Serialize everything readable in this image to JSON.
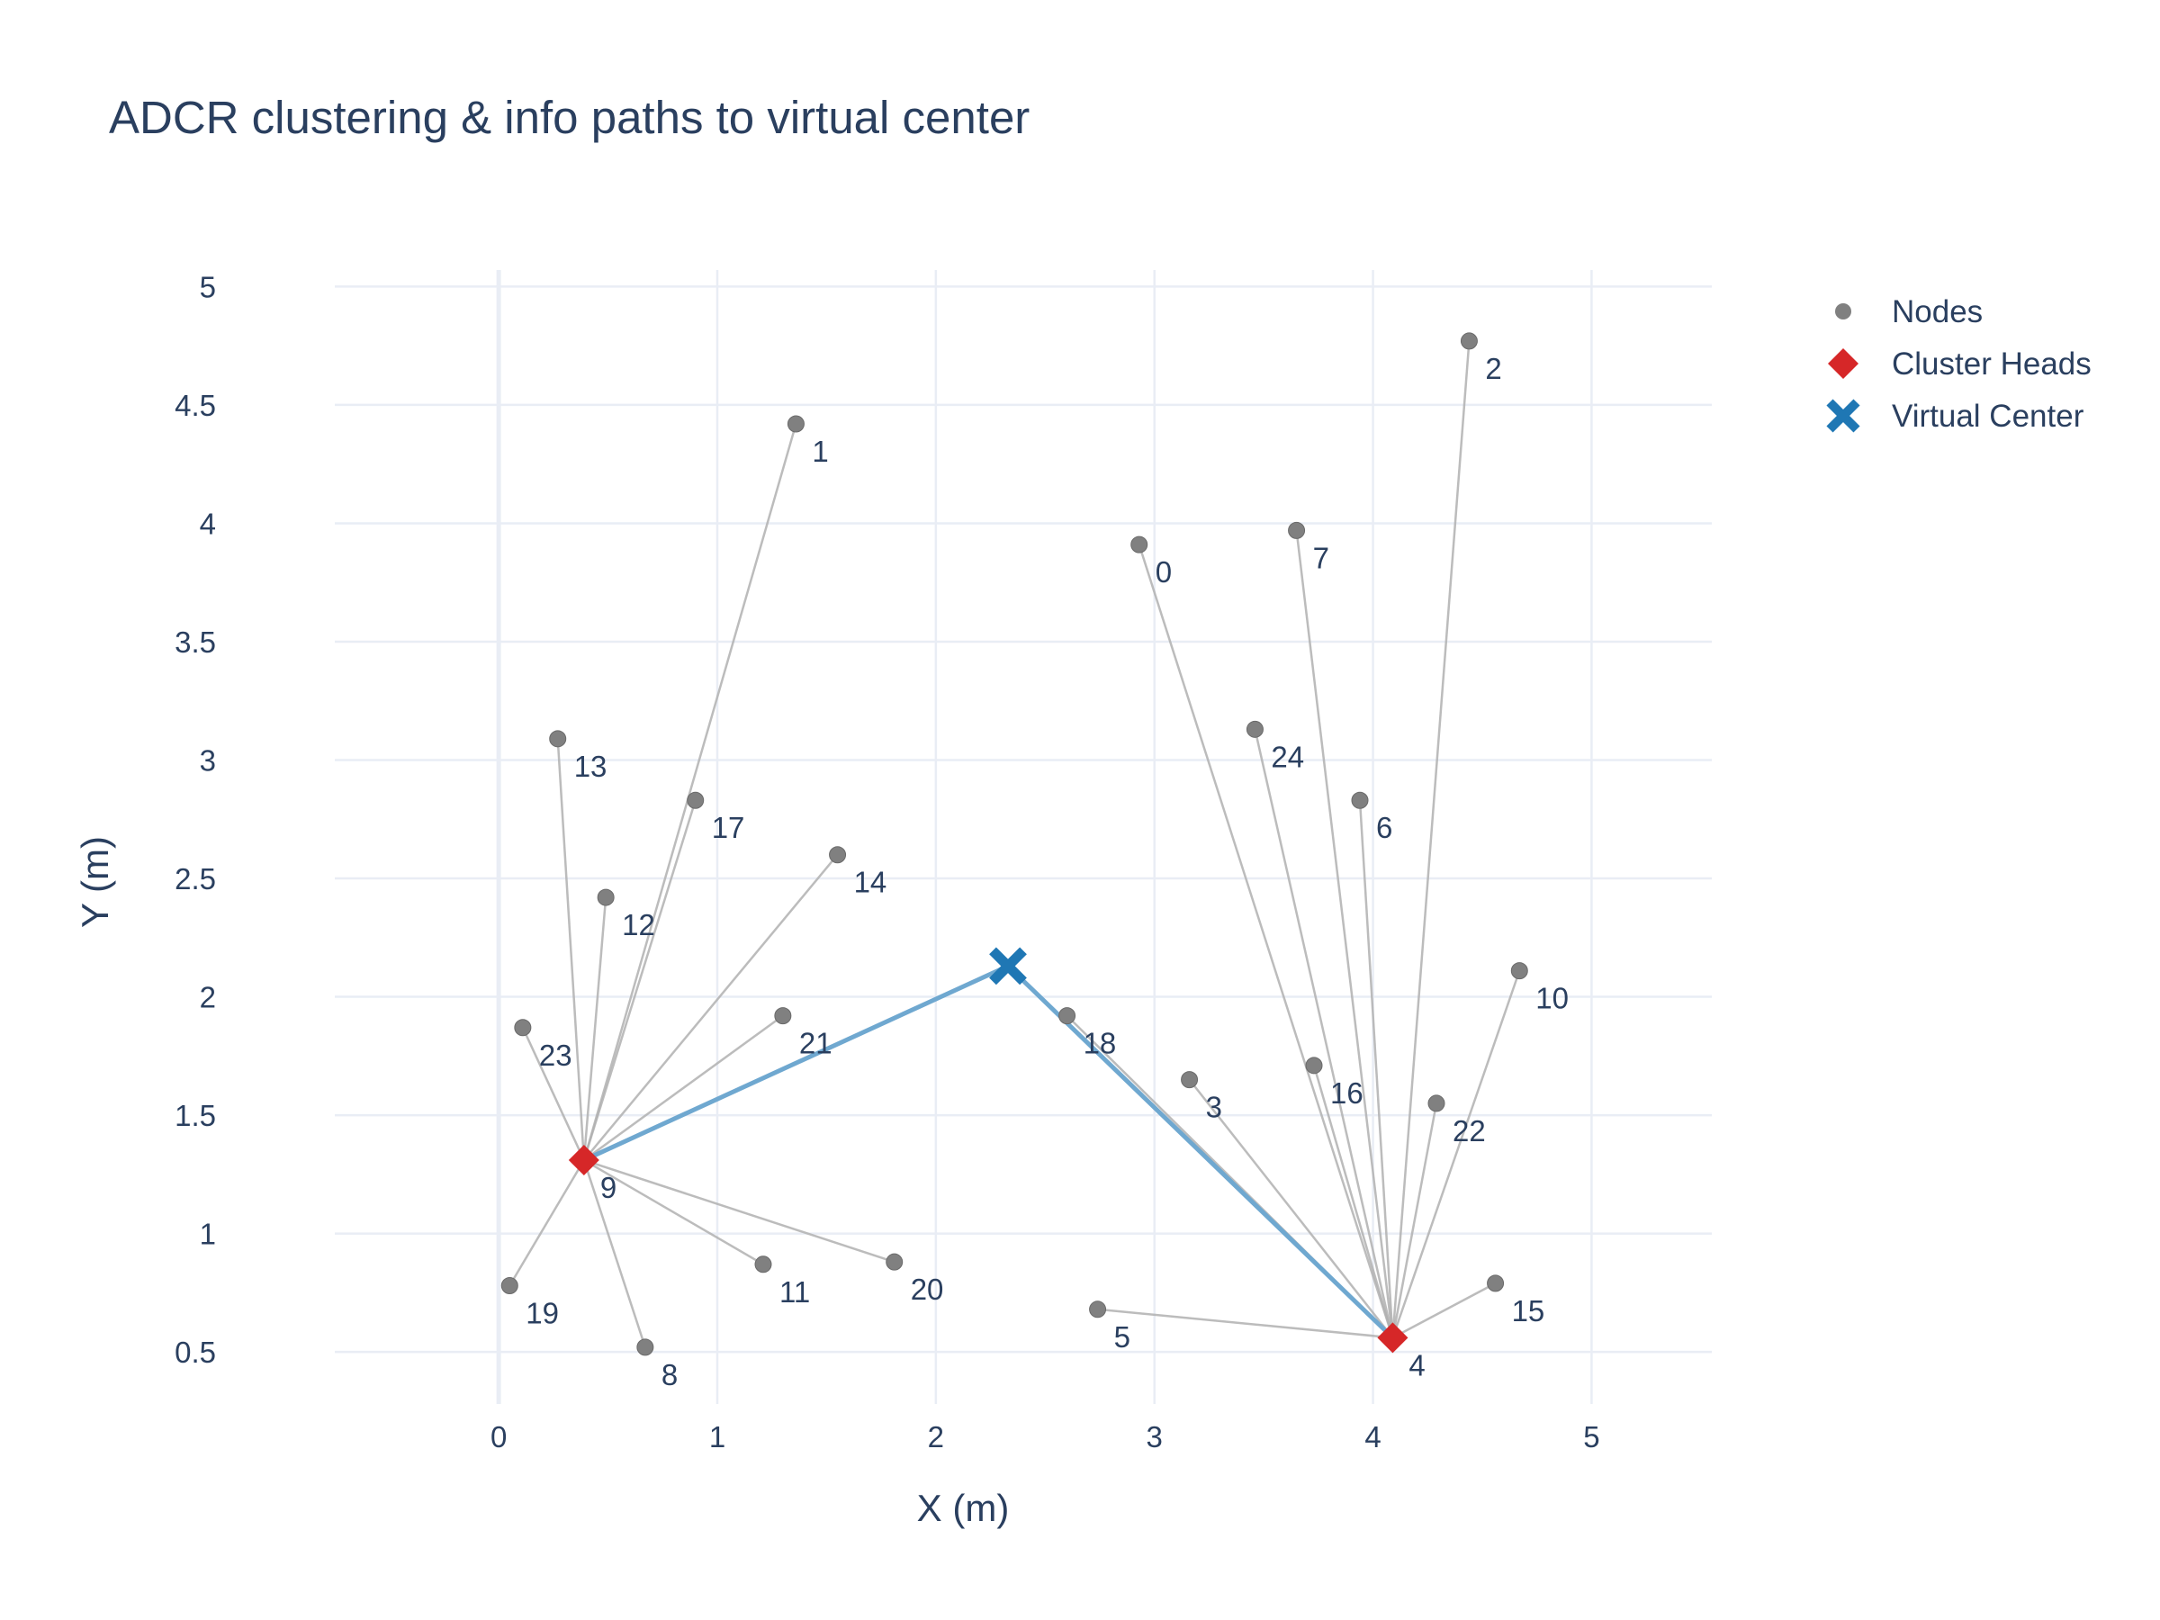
{
  "chart_data": {
    "type": "scatter",
    "title": "ADCR clustering & info paths to virtual center",
    "xlabel": "X (m)",
    "ylabel": "Y (m)",
    "xlim": [
      -0.75,
      5.55
    ],
    "ylim": [
      0.28,
      5.07
    ],
    "xticks": [
      0,
      1,
      2,
      3,
      4,
      5
    ],
    "yticks": [
      0.5,
      1,
      1.5,
      2,
      2.5,
      3,
      3.5,
      4,
      4.5,
      5
    ],
    "ytick_labels": [
      "0.5",
      "1",
      "1.5",
      "2",
      "2.5",
      "3",
      "3.5",
      "4",
      "4.5",
      "5"
    ],
    "grid": true,
    "legend_position": "top-right",
    "colors": {
      "node": "#808080",
      "cluster_head": "#d62728",
      "virtual_center": "#1f77b4",
      "member_link": "#b0b0b0",
      "head_path": "#6fa8d0",
      "grid": "#e9edf5",
      "text": "#2a3f5f"
    },
    "legend": [
      {
        "name": "Nodes",
        "symbol": "circle"
      },
      {
        "name": "Cluster Heads",
        "symbol": "diamond"
      },
      {
        "name": "Virtual Center",
        "symbol": "x"
      }
    ],
    "nodes": [
      {
        "id": "0",
        "x": 2.93,
        "y": 3.91
      },
      {
        "id": "1",
        "x": 1.36,
        "y": 4.42
      },
      {
        "id": "2",
        "x": 4.44,
        "y": 4.77
      },
      {
        "id": "3",
        "x": 3.16,
        "y": 1.65
      },
      {
        "id": "5",
        "x": 2.74,
        "y": 0.68
      },
      {
        "id": "6",
        "x": 3.94,
        "y": 2.83
      },
      {
        "id": "7",
        "x": 3.65,
        "y": 3.97
      },
      {
        "id": "8",
        "x": 0.67,
        "y": 0.52
      },
      {
        "id": "10",
        "x": 4.67,
        "y": 2.11
      },
      {
        "id": "11",
        "x": 1.21,
        "y": 0.87
      },
      {
        "id": "12",
        "x": 0.49,
        "y": 2.42
      },
      {
        "id": "13",
        "x": 0.27,
        "y": 3.09
      },
      {
        "id": "14",
        "x": 1.55,
        "y": 2.6
      },
      {
        "id": "15",
        "x": 4.56,
        "y": 0.79
      },
      {
        "id": "16",
        "x": 3.73,
        "y": 1.71
      },
      {
        "id": "17",
        "x": 0.9,
        "y": 2.83
      },
      {
        "id": "18",
        "x": 2.6,
        "y": 1.92
      },
      {
        "id": "19",
        "x": 0.05,
        "y": 0.78
      },
      {
        "id": "20",
        "x": 1.81,
        "y": 0.88
      },
      {
        "id": "21",
        "x": 1.3,
        "y": 1.92
      },
      {
        "id": "22",
        "x": 4.29,
        "y": 1.55
      },
      {
        "id": "23",
        "x": 0.11,
        "y": 1.87
      },
      {
        "id": "24",
        "x": 3.46,
        "y": 3.13
      }
    ],
    "cluster_heads": [
      {
        "id": "9",
        "x": 0.39,
        "y": 1.31
      },
      {
        "id": "4",
        "x": 4.09,
        "y": 0.56
      }
    ],
    "virtual_center": {
      "x": 2.33,
      "y": 2.13
    },
    "clusters": [
      {
        "head": "9",
        "members": [
          "1",
          "8",
          "11",
          "12",
          "13",
          "14",
          "17",
          "19",
          "20",
          "21",
          "23"
        ]
      },
      {
        "head": "4",
        "members": [
          "0",
          "2",
          "3",
          "5",
          "6",
          "7",
          "10",
          "15",
          "16",
          "18",
          "22",
          "24"
        ]
      }
    ]
  }
}
